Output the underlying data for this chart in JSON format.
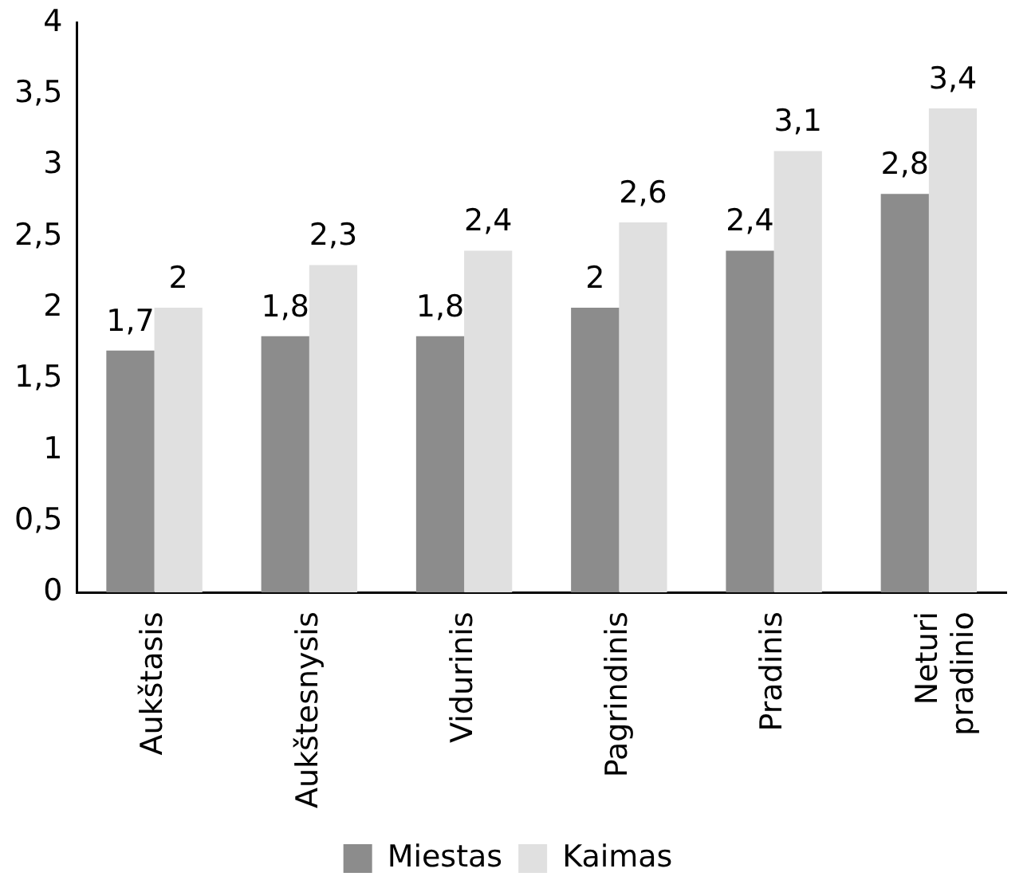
{
  "chart_data": {
    "type": "bar",
    "categories": [
      "Aukštasis",
      "Aukštesnysis",
      "Vidurinis",
      "Pagrindinis",
      "Pradinis",
      "Neturi pradinio"
    ],
    "series": [
      {
        "name": "Miestas",
        "color": "#8c8c8c",
        "values": [
          1.7,
          1.8,
          1.8,
          2,
          2.4,
          2.8
        ],
        "value_labels": [
          "1,7",
          "1,8",
          "1,8",
          "2",
          "2,4",
          "2,8"
        ]
      },
      {
        "name": "Kaimas",
        "color": "#e0e0e0",
        "values": [
          2,
          2.3,
          2.4,
          2.6,
          3.1,
          3.4
        ],
        "value_labels": [
          "2",
          "2,3",
          "2,4",
          "2,6",
          "3,1",
          "3,4"
        ]
      }
    ],
    "ylim": [
      0,
      4
    ],
    "yticks": [
      0,
      {
        "value": 0.5,
        "label": "0,5"
      },
      1,
      {
        "value": 1.5,
        "label": "1,5"
      },
      2,
      {
        "value": 2.5,
        "label": "2,5"
      },
      3,
      {
        "value": 3.5,
        "label": "3,5"
      },
      4
    ],
    "grid": false,
    "legend": "bottom"
  }
}
